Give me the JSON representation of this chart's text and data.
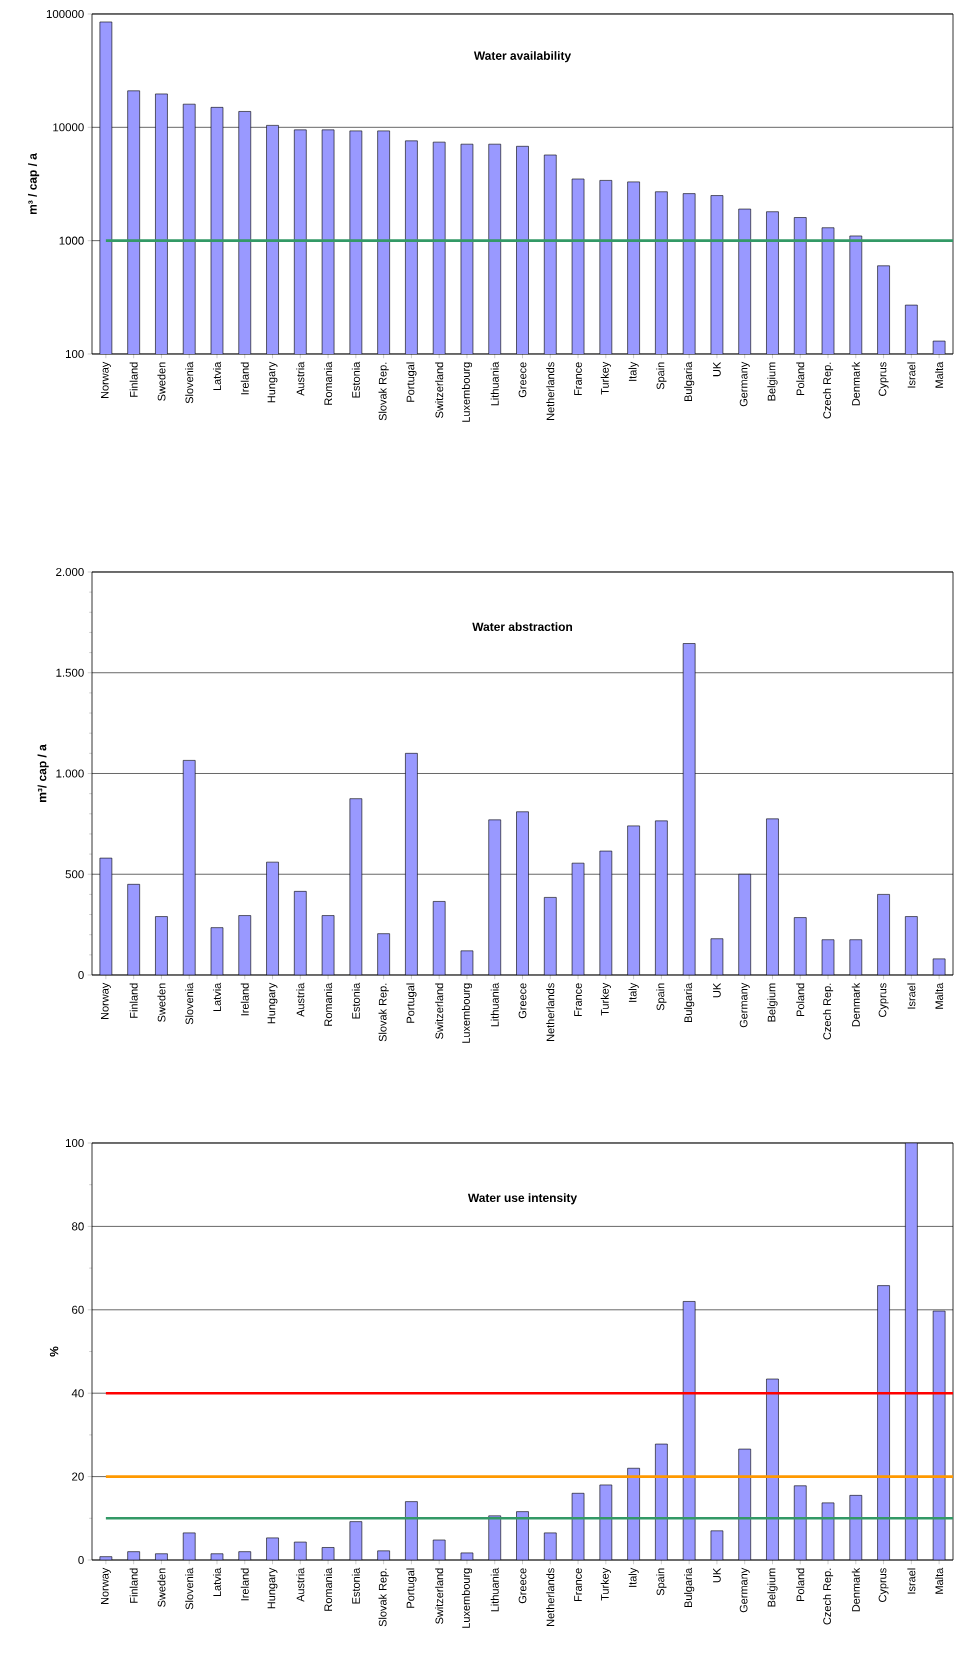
{
  "chart_data": [
    {
      "type": "bar",
      "title": "Water availability",
      "ylabel": "m³ / cap / a",
      "log": "y",
      "grid": "y",
      "color": "#9999ff",
      "categories": [
        "Norway",
        "Finland",
        "Sweden",
        "Slovenia",
        "Latvia",
        "Ireland",
        "Hungary",
        "Austria",
        "Romania",
        "Estonia",
        "Slovak Rep.",
        "Portugal",
        "Switzerland",
        "Luxembourg",
        "Lithuania",
        "Greece",
        "Netherlands",
        "France",
        "Turkey",
        "Italy",
        "Spain",
        "Bulgaria",
        "UK",
        "Germany",
        "Belgium",
        "Poland",
        "Czech Rep.",
        "Denmark",
        "Cyprus",
        "Israel",
        "Malta"
      ],
      "values": [
        85000,
        21000,
        19700,
        16000,
        15000,
        13800,
        10400,
        9500,
        9500,
        9300,
        9300,
        7600,
        7400,
        7100,
        7100,
        6800,
        5700,
        3500,
        3400,
        3300,
        2700,
        2600,
        2500,
        1900,
        1800,
        1600,
        1300,
        1100,
        600,
        270,
        130
      ],
      "ylim": [
        100,
        100000
      ],
      "yticks": [
        100,
        1000,
        10000,
        100000
      ],
      "ref_lines": [
        {
          "axis": "y",
          "value": 1000,
          "color": "#339966"
        }
      ]
    },
    {
      "type": "bar",
      "title": "Water abstraction",
      "ylabel": "m³/ cap / a",
      "grid": "y",
      "color": "#9999ff",
      "categories": [
        "Norway",
        "Finland",
        "Sweden",
        "Slovenia",
        "Latvia",
        "Ireland",
        "Hungary",
        "Austria",
        "Romania",
        "Estonia",
        "Slovak Rep.",
        "Portugal",
        "Switzerland",
        "Luxembourg",
        "Lithuania",
        "Greece",
        "Netherlands",
        "France",
        "Turkey",
        "Italy",
        "Spain",
        "Bulgaria",
        "UK",
        "Germany",
        "Belgium",
        "Poland",
        "Czech Rep.",
        "Denmark",
        "Cyprus",
        "Israel",
        "Malta"
      ],
      "values": [
        580,
        450,
        290,
        1065,
        235,
        295,
        560,
        415,
        295,
        875,
        205,
        1100,
        365,
        120,
        770,
        810,
        385,
        555,
        615,
        740,
        765,
        1645,
        180,
        500,
        775,
        285,
        175,
        175,
        400,
        290,
        80
      ],
      "ylim": [
        0,
        2000
      ],
      "yticks": [
        0,
        500,
        {
          "value": 1000,
          "label": "1.000"
        },
        {
          "value": 1500,
          "label": "1.500"
        },
        {
          "value": 2000,
          "label": "2.000"
        }
      ]
    },
    {
      "type": "bar",
      "title": "Water use intensity",
      "ylabel": "%",
      "grid": "y",
      "color": "#9999ff",
      "categories": [
        "Norway",
        "Finland",
        "Sweden",
        "Slovenia",
        "Latvia",
        "Ireland",
        "Hungary",
        "Austria",
        "Romania",
        "Estonia",
        "Slovak Rep.",
        "Portugal",
        "Switzerland",
        "Luxembourg",
        "Lithuania",
        "Greece",
        "Netherlands",
        "France",
        "Turkey",
        "Italy",
        "Spain",
        "Bulgaria",
        "UK",
        "Germany",
        "Belgium",
        "Poland",
        "Czech Rep.",
        "Denmark",
        "Cyprus",
        "Israel",
        "Malta"
      ],
      "values": [
        0.8,
        2,
        1.5,
        6.5,
        1.5,
        2,
        5.3,
        4.3,
        3,
        9.2,
        2.2,
        14,
        4.8,
        1.7,
        10.6,
        11.6,
        6.5,
        16,
        18,
        22,
        27.8,
        62,
        7,
        26.6,
        43.4,
        17.8,
        13.7,
        15.5,
        65.8,
        100,
        59.7
      ],
      "ylim": [
        0,
        100
      ],
      "yticks": [
        0,
        20,
        40,
        60,
        80,
        100
      ],
      "ref_lines": [
        {
          "axis": "y",
          "value": 40,
          "color": "#ff0000"
        },
        {
          "axis": "y",
          "value": 20,
          "color": "#ff9900"
        },
        {
          "axis": "y",
          "value": 10,
          "color": "#339966"
        }
      ]
    }
  ]
}
